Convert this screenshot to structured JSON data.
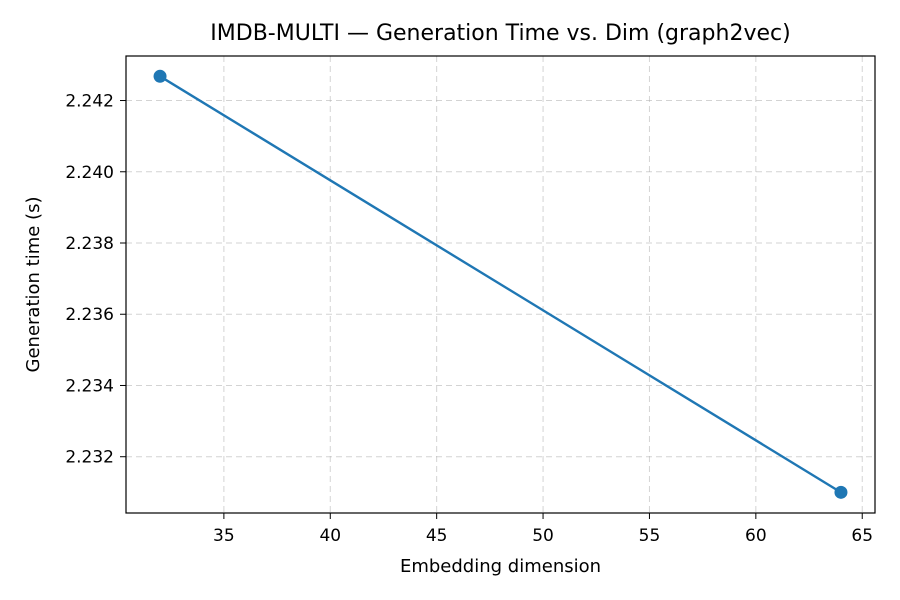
{
  "chart_data": {
    "type": "line",
    "title": "IMDB-MULTI — Generation Time vs. Dim (graph2vec)",
    "xlabel": "Embedding dimension",
    "ylabel": "Generation time (s)",
    "xlim": [
      30.4,
      65.6
    ],
    "ylim": [
      2.23042,
      2.24325
    ],
    "xticks": [
      35,
      40,
      45,
      50,
      55,
      60,
      65
    ],
    "xtick_labels": [
      "35",
      "40",
      "45",
      "50",
      "55",
      "60",
      "65"
    ],
    "yticks": [
      2.232,
      2.234,
      2.236,
      2.238,
      2.24,
      2.242
    ],
    "ytick_labels": [
      "2.232",
      "2.234",
      "2.236",
      "2.238",
      "2.240",
      "2.242"
    ],
    "grid": true,
    "series": [
      {
        "color": "#1f77b4",
        "marker": "circle",
        "x": [
          32,
          64
        ],
        "y": [
          2.24268,
          2.231
        ]
      }
    ]
  }
}
